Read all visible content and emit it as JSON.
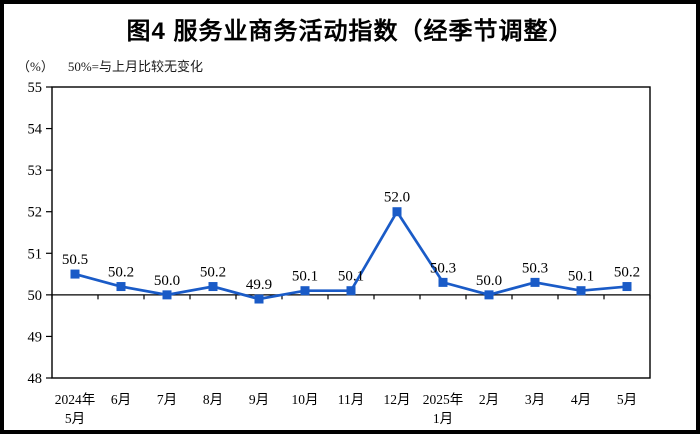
{
  "chart_data": {
    "type": "line",
    "title": "图4 服务业商务活动指数（经季节调整）",
    "unit_label": "（%）",
    "note": "50%=与上月比较无变化",
    "categories": [
      [
        "2024年",
        "5月"
      ],
      [
        "6月"
      ],
      [
        "7月"
      ],
      [
        "8月"
      ],
      [
        "9月"
      ],
      [
        "10月"
      ],
      [
        "11月"
      ],
      [
        "12月"
      ],
      [
        "2025年",
        "1月"
      ],
      [
        "2月"
      ],
      [
        "3月"
      ],
      [
        "4月"
      ],
      [
        "5月"
      ]
    ],
    "values": [
      50.5,
      50.2,
      50.0,
      50.2,
      49.9,
      50.1,
      50.1,
      52.0,
      50.3,
      50.0,
      50.3,
      50.1,
      50.2
    ],
    "data_labels": [
      "50.5",
      "50.2",
      "50.0",
      "50.2",
      "49.9",
      "50.1",
      "50.1",
      "52.0",
      "50.3",
      "50.0",
      "50.3",
      "50.1",
      "50.2"
    ],
    "ylim": [
      48,
      55
    ],
    "ytick_labels": [
      "48",
      "49",
      "50",
      "51",
      "52",
      "53",
      "54",
      "55"
    ],
    "reference_line": 50,
    "series_color": "#1a5bc7",
    "axis_color": "#000000",
    "grid": false,
    "legend": "none"
  }
}
